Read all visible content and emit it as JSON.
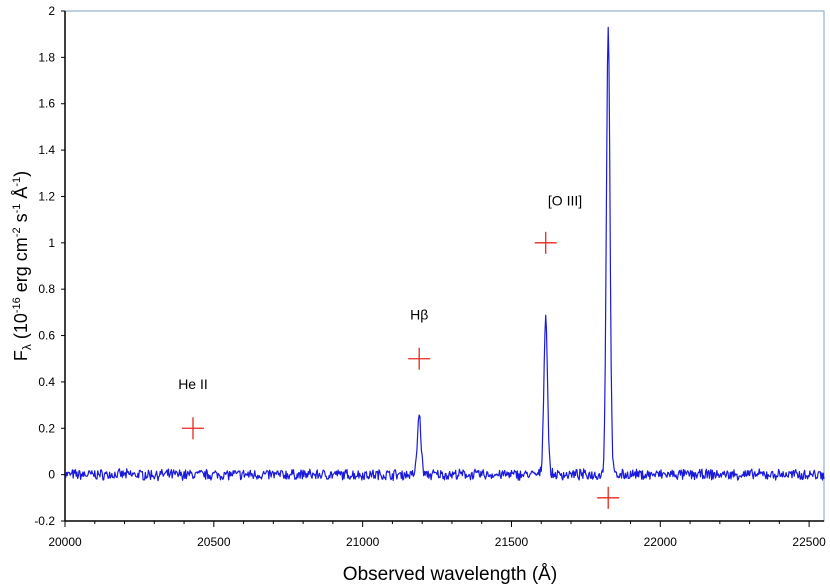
{
  "chart_data": {
    "type": "line",
    "title": "",
    "xlabel": "Observed wavelength (Å)",
    "ylabel": {
      "prefix": "F",
      "sub": "λ",
      "p1": " (10",
      "e1": "-16",
      "p2": " erg cm",
      "e2": "-2",
      "p3": " s",
      "e3": "-1",
      "p4": " Å",
      "e4": "-1",
      "p5": ")"
    },
    "xlim": [
      20000,
      22550
    ],
    "ylim": [
      -0.2,
      2
    ],
    "x_ticks": [
      20000,
      20500,
      21000,
      21500,
      22000,
      22500
    ],
    "x_tick_labels": [
      "20000",
      "20500",
      "21000",
      "21500",
      "22000",
      "22500"
    ],
    "y_ticks": [
      -0.2,
      0,
      0.2,
      0.4,
      0.6,
      0.8,
      1,
      1.2,
      1.4,
      1.6,
      1.8,
      2
    ],
    "y_tick_labels": [
      "-0.2",
      "0",
      "0.2",
      "0.4",
      "0.6",
      "0.8",
      "1",
      "1.2",
      "1.4",
      "1.6",
      "1.8",
      "2"
    ],
    "grid": false,
    "spectrum": {
      "color": "#1a1adb",
      "x_start": 20000,
      "x_end": 22550,
      "noise_amplitude": 0.02,
      "lines": [
        {
          "center": 21190,
          "peak": 0.26,
          "width": 6
        },
        {
          "center": 21615,
          "peak": 0.69,
          "width": 6
        },
        {
          "center": 21825,
          "peak": 1.94,
          "width": 6
        }
      ]
    },
    "markers": {
      "color": "#e8281e",
      "points": [
        {
          "x": 20430,
          "y": 0.2
        },
        {
          "x": 21190,
          "y": 0.5
        },
        {
          "x": 21615,
          "y": 1.0
        },
        {
          "x": 21825,
          "y": -0.1
        }
      ]
    },
    "annotations": [
      {
        "text": "He II",
        "x": 20430,
        "y": 0.37
      },
      {
        "text": "Hβ",
        "x": 21190,
        "y": 0.67
      },
      {
        "text": "[O III]",
        "x": 21680,
        "y": 1.16
      }
    ]
  }
}
